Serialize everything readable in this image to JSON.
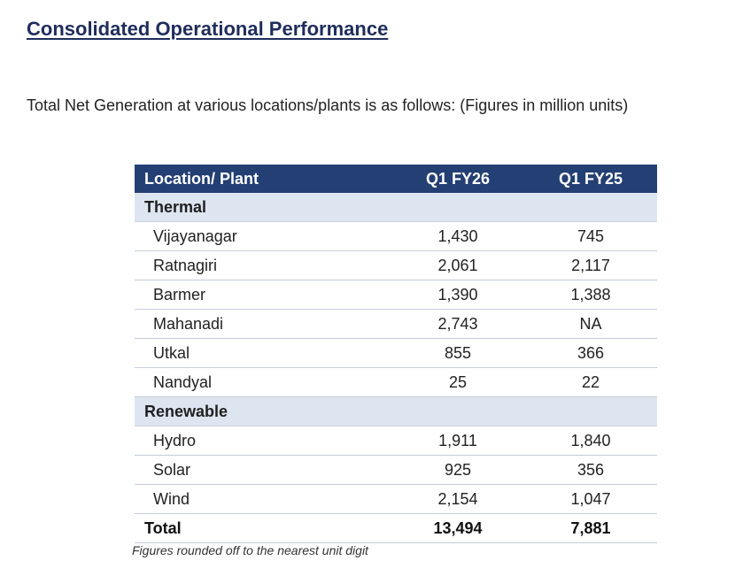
{
  "page": {
    "title": "Consolidated Operational Performance",
    "intro": "Total Net Generation at various locations/plants is as follows: (Figures in million units)",
    "footnote": "Figures rounded off to the nearest unit digit"
  },
  "table": {
    "headers": [
      "Location/ Plant",
      "Q1 FY26",
      "Q1 FY25"
    ],
    "thermal": {
      "label": "Thermal",
      "rows": [
        {
          "plant": "Vijayanagar",
          "q1fy26": "1,430",
          "q1fy25": "745"
        },
        {
          "plant": "Ratnagiri",
          "q1fy26": "2,061",
          "q1fy25": "2,117"
        },
        {
          "plant": "Barmer",
          "q1fy26": "1,390",
          "q1fy25": "1,388"
        },
        {
          "plant": "Mahanadi",
          "q1fy26": "2,743",
          "q1fy25": "NA"
        },
        {
          "plant": "Utkal",
          "q1fy26": "855",
          "q1fy25": "366"
        },
        {
          "plant": "Nandyal",
          "q1fy26": "25",
          "q1fy25": "22"
        }
      ]
    },
    "renewable": {
      "label": "Renewable",
      "rows": [
        {
          "plant": "Hydro",
          "q1fy26": "1,911",
          "q1fy25": "1,840"
        },
        {
          "plant": "Solar",
          "q1fy26": "925",
          "q1fy25": "356"
        },
        {
          "plant": "Wind",
          "q1fy26": "2,154",
          "q1fy25": "1,047"
        }
      ]
    },
    "total": {
      "label": "Total",
      "q1fy26": "13,494",
      "q1fy25": "7,881"
    }
  },
  "colors": {
    "header_bg": "#233f73",
    "section_bg": "#dde5f0",
    "title_color": "#1f2d5c"
  }
}
